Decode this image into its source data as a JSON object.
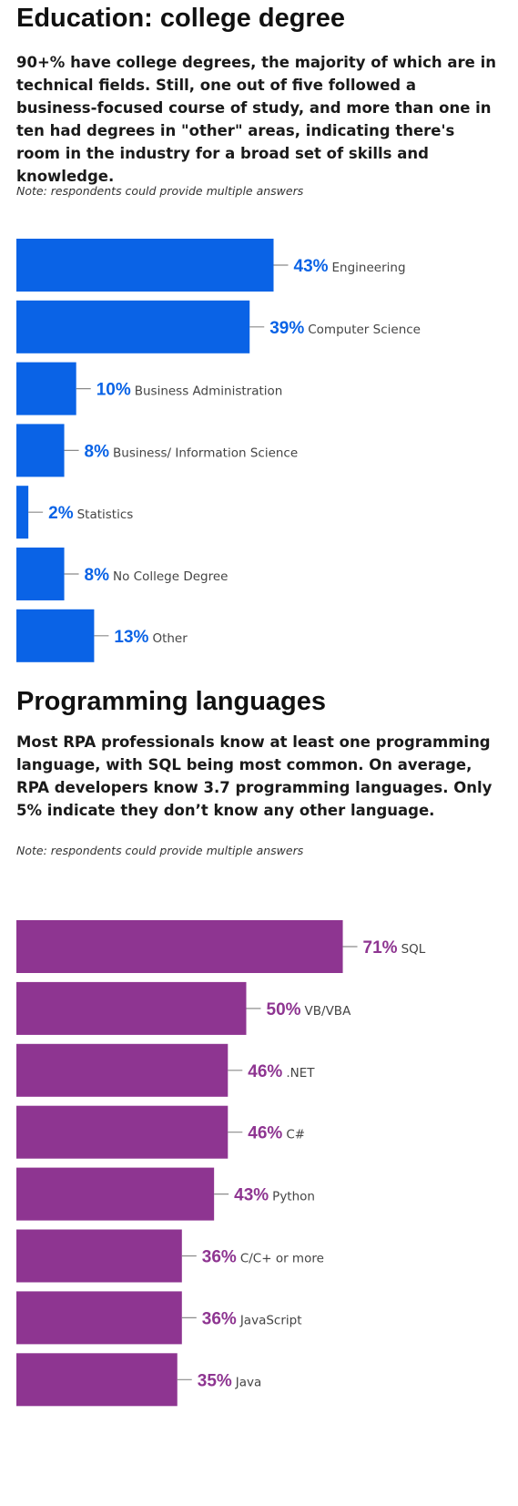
{
  "charts": [
    {
      "id": "edu",
      "title": "Education: college degree",
      "description": "90+% have college degrees, the majority of which are in technical fields. Still, one out of five followed a business-focused course of study, and more than one in ten had degrees in \"other\" areas, indicating there's room in the industry for a broad set of skills and knowledge.",
      "note": "Note: respondents could provide multiple answers",
      "bar_color": "#0a63e6",
      "label_color": "#0a63e6"
    },
    {
      "id": "lang",
      "title": "Programming languages",
      "description": "Most RPA professionals know at least one programming language, with SQL being most common. On average, RPA developers know 3.7 programming languages. Only 5% indicate they don’t know any other language.",
      "note": "Note: respondents could provide multiple answers",
      "bar_color": "#8e3591",
      "label_color": "#8e3591"
    }
  ],
  "chart_data": [
    {
      "type": "bar",
      "orientation": "horizontal",
      "title": "Education: college degree",
      "xlim": [
        0,
        100
      ],
      "unit": "%",
      "categories": [
        "Engineering",
        "Computer Science",
        "Business Administration",
        "Business/ Information Science",
        "Statistics",
        "No College Degree",
        "Other"
      ],
      "values": [
        43,
        39,
        10,
        8,
        2,
        8,
        13
      ],
      "labels": [
        "43%",
        "39%",
        "10%",
        "8%",
        "2%",
        "8%",
        "13%"
      ]
    },
    {
      "type": "bar",
      "orientation": "horizontal",
      "title": "Programming languages",
      "xlim": [
        0,
        100
      ],
      "unit": "%",
      "categories": [
        "SQL",
        "VB/VBA",
        ".NET",
        "C#",
        "Python",
        "C/C+ or more",
        "JavaScript",
        "Java"
      ],
      "values": [
        71,
        50,
        46,
        46,
        43,
        36,
        36,
        35
      ],
      "labels": [
        "71%",
        "50%",
        "46%",
        "46%",
        "43%",
        "36%",
        "36%",
        "35%"
      ]
    }
  ]
}
